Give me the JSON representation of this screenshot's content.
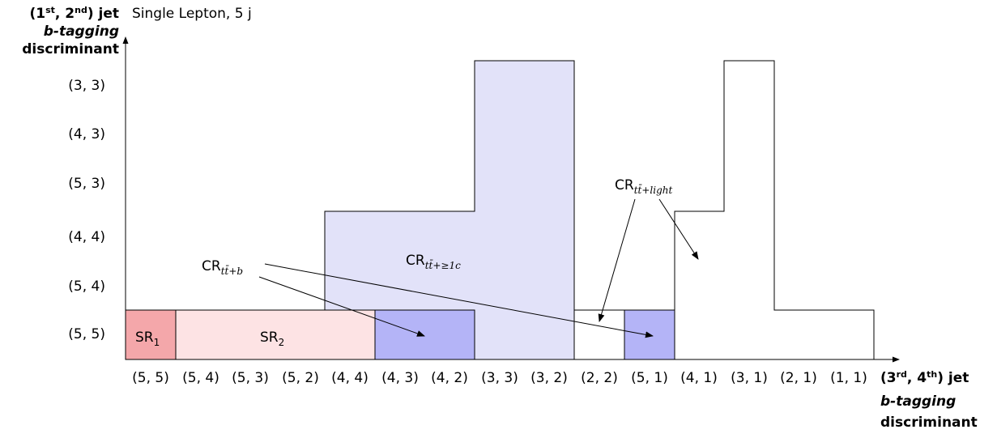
{
  "title": "Single Lepton, 5 j",
  "y_axis": {
    "label_line1_pre": "(1",
    "label_sup1": "st",
    "label_line1_mid": ", 2",
    "label_sup2": "nd",
    "label_line1_post": ") jet",
    "label_line2": "b-tagging",
    "label_line3": "discriminant",
    "ticks": [
      "(5, 5)",
      "(5, 4)",
      "(4, 4)",
      "(5, 3)",
      "(4, 3)",
      "(3, 3)"
    ]
  },
  "x_axis": {
    "label_line1_pre": "(3",
    "label_sup1": "rd",
    "label_line1_mid": ", 4",
    "label_sup2": "th",
    "label_line1_post": ") jet",
    "label_line2": "b-tagging",
    "label_line3": "discriminant",
    "ticks": [
      "(5, 5)",
      "(5, 4)",
      "(5, 3)",
      "(5, 2)",
      "(4, 4)",
      "(4, 3)",
      "(4, 2)",
      "(3, 3)",
      "(3, 2)",
      "(2, 2)",
      "(5, 1)",
      "(4, 1)",
      "(3, 1)",
      "(2, 1)",
      "(1, 1)"
    ]
  },
  "regions": {
    "sr1": {
      "base": "SR",
      "sub": "1"
    },
    "sr2": {
      "base": "SR",
      "sub": "2"
    },
    "cr_b": {
      "base": "CR",
      "sub": "tt̄+b"
    },
    "cr_c": {
      "base": "CR",
      "sub": "tt̄+≥1c"
    },
    "cr_light": {
      "base": "CR",
      "sub": "tt̄+light"
    }
  },
  "colors": {
    "sr1": "#f4a7aa",
    "sr2": "#fde3e4",
    "cr_b": "#b4b4f7",
    "cr_c": "#e2e2f9"
  }
}
